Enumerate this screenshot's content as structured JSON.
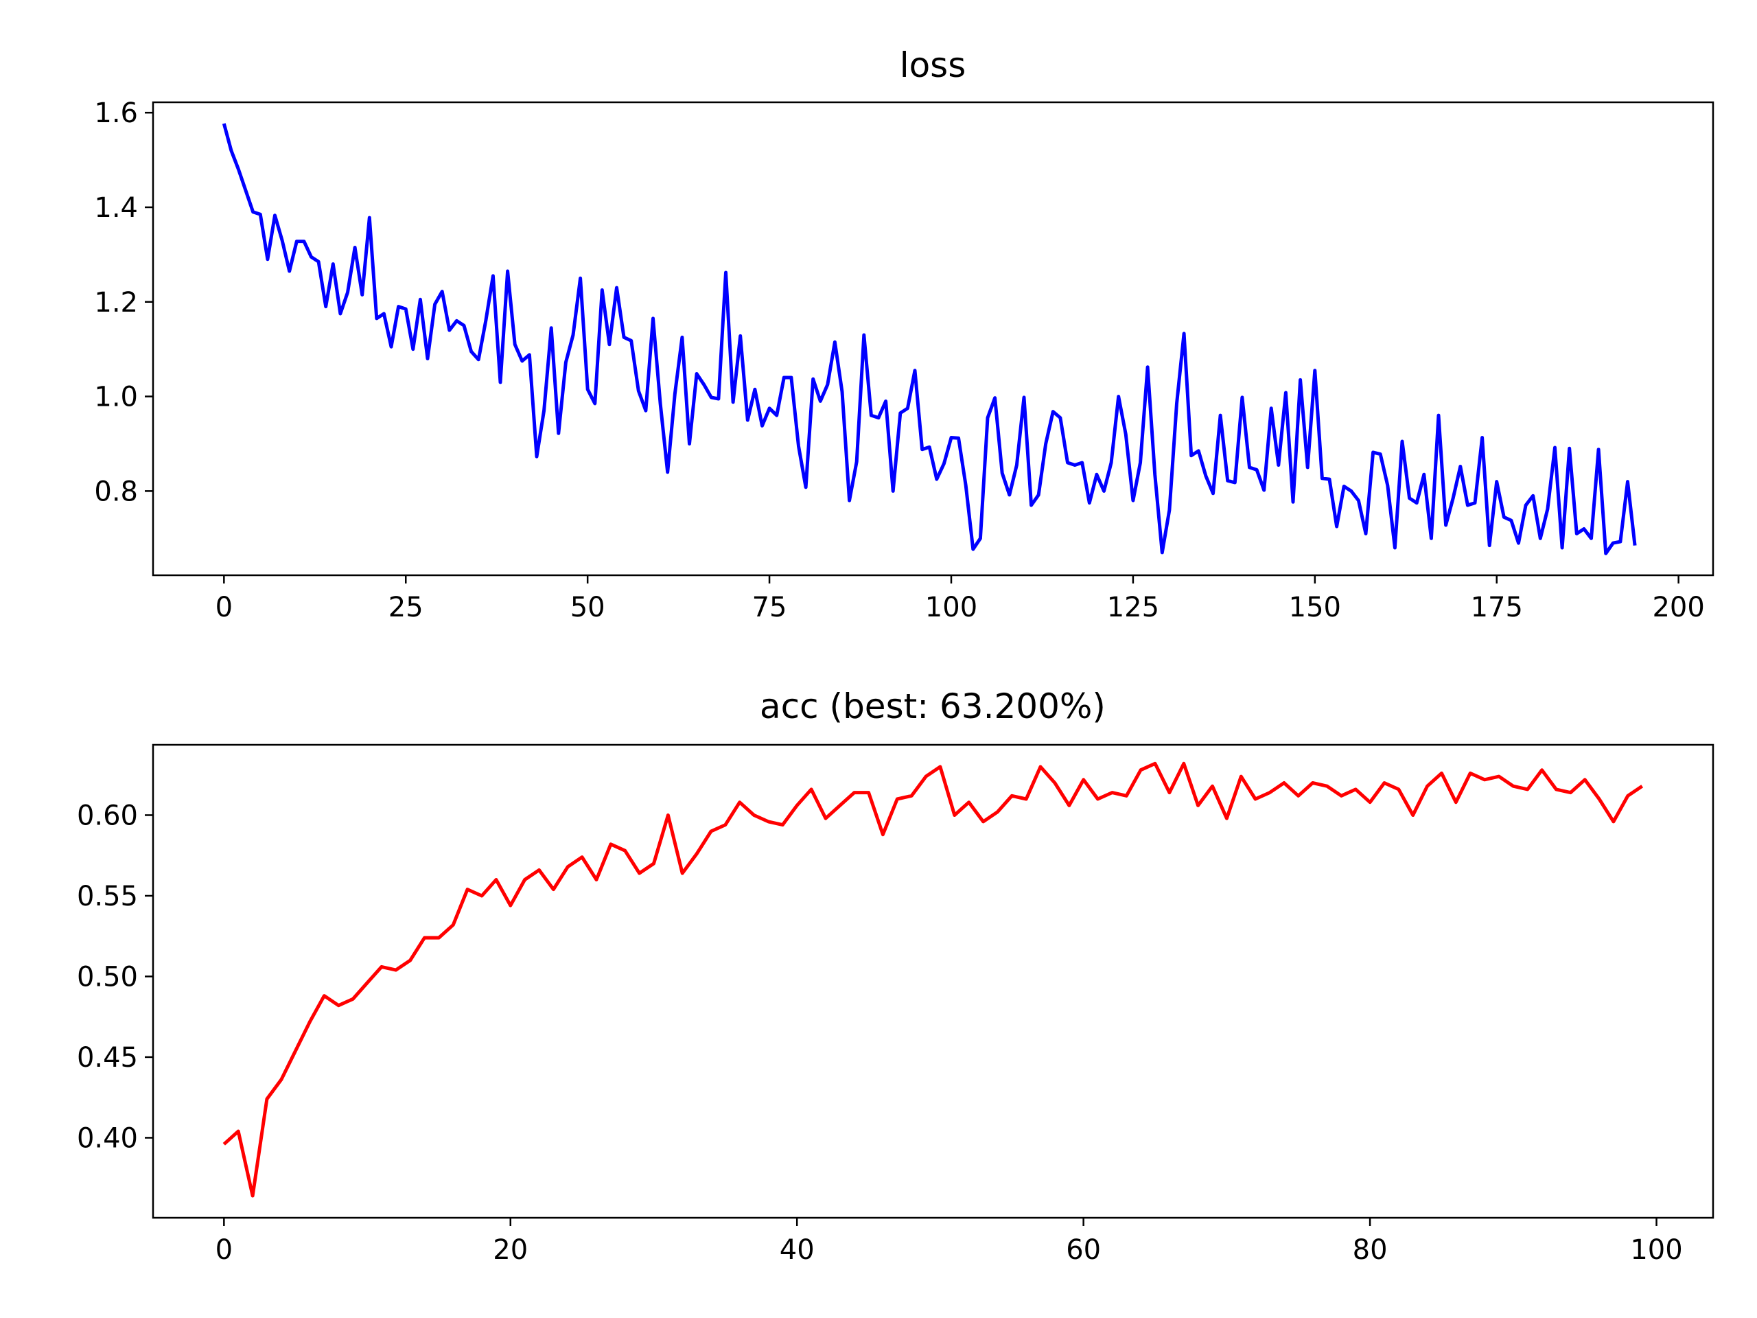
{
  "chart_data": [
    {
      "type": "line",
      "title": "loss",
      "xlabel": "",
      "ylabel": "",
      "xlim": [
        -9.75,
        204.75
      ],
      "ylim": [
        0.622,
        1.622
      ],
      "xticks": [
        0,
        25,
        50,
        75,
        100,
        125,
        150,
        175,
        200
      ],
      "yticks": [
        0.8,
        1.0,
        1.2,
        1.4,
        1.6
      ],
      "grid": false,
      "legend": "none",
      "series": [
        {
          "color": "#0000ff",
          "x_start": 0,
          "x_step": 1,
          "values": [
            1.577,
            1.52,
            1.48,
            1.435,
            1.39,
            1.385,
            1.29,
            1.383,
            1.33,
            1.265,
            1.328,
            1.328,
            1.295,
            1.285,
            1.19,
            1.28,
            1.175,
            1.22,
            1.315,
            1.215,
            1.378,
            1.165,
            1.175,
            1.105,
            1.19,
            1.185,
            1.1,
            1.205,
            1.08,
            1.195,
            1.222,
            1.14,
            1.16,
            1.15,
            1.095,
            1.078,
            1.16,
            1.255,
            1.03,
            1.265,
            1.11,
            1.075,
            1.088,
            0.873,
            0.97,
            1.145,
            0.922,
            1.072,
            1.13,
            1.25,
            1.015,
            0.985,
            1.225,
            1.11,
            1.23,
            1.125,
            1.118,
            1.012,
            0.97,
            1.165,
            0.985,
            0.84,
            1.005,
            1.125,
            0.9,
            1.048,
            1.025,
            0.998,
            0.995,
            1.262,
            0.988,
            1.128,
            0.95,
            1.015,
            0.938,
            0.975,
            0.96,
            1.04,
            1.04,
            0.895,
            0.808,
            1.037,
            0.99,
            1.025,
            1.115,
            1.01,
            0.78,
            0.862,
            1.13,
            0.96,
            0.955,
            0.99,
            0.8,
            0.965,
            0.975,
            1.055,
            0.888,
            0.893,
            0.825,
            0.858,
            0.913,
            0.912,
            0.812,
            0.677,
            0.7,
            0.955,
            0.997,
            0.838,
            0.792,
            0.855,
            0.998,
            0.77,
            0.792,
            0.9,
            0.968,
            0.955,
            0.86,
            0.855,
            0.86,
            0.775,
            0.835,
            0.8,
            0.86,
            1.0,
            0.92,
            0.78,
            0.86,
            1.062,
            0.835,
            0.67,
            0.76,
            0.985,
            1.133,
            0.875,
            0.885,
            0.832,
            0.795,
            0.96,
            0.822,
            0.818,
            0.998,
            0.85,
            0.845,
            0.802,
            0.975,
            0.855,
            1.008,
            0.777,
            1.035,
            0.85,
            1.055,
            0.827,
            0.825,
            0.725,
            0.81,
            0.8,
            0.78,
            0.71,
            0.882,
            0.878,
            0.812,
            0.68,
            0.905,
            0.785,
            0.775,
            0.835,
            0.7,
            0.96,
            0.728,
            0.785,
            0.852,
            0.77,
            0.775,
            0.913,
            0.685,
            0.82,
            0.745,
            0.738,
            0.69,
            0.77,
            0.79,
            0.7,
            0.762,
            0.892,
            0.68,
            0.89,
            0.71,
            0.72,
            0.7,
            0.888,
            0.668,
            0.69,
            0.693,
            0.82,
            0.685
          ]
        }
      ]
    },
    {
      "type": "line",
      "title": "acc (best: 63.200%)",
      "xlabel": "",
      "ylabel": "",
      "xlim": [
        -4.95,
        103.95
      ],
      "ylim": [
        0.3504,
        0.6436
      ],
      "xticks": [
        0,
        20,
        40,
        60,
        80,
        100
      ],
      "yticks": [
        0.4,
        0.45,
        0.5,
        0.55,
        0.6
      ],
      "ytick_decimals": 2,
      "grid": false,
      "legend": "none",
      "series": [
        {
          "color": "#ff0000",
          "x_start": 0,
          "x_step": 1,
          "values": [
            0.396,
            0.404,
            0.364,
            0.424,
            0.436,
            0.454,
            0.472,
            0.488,
            0.482,
            0.486,
            0.496,
            0.506,
            0.504,
            0.51,
            0.524,
            0.524,
            0.532,
            0.554,
            0.55,
            0.56,
            0.544,
            0.56,
            0.566,
            0.554,
            0.568,
            0.574,
            0.56,
            0.582,
            0.578,
            0.564,
            0.57,
            0.6,
            0.564,
            0.576,
            0.59,
            0.594,
            0.608,
            0.6,
            0.596,
            0.594,
            0.606,
            0.616,
            0.598,
            0.606,
            0.614,
            0.614,
            0.588,
            0.61,
            0.612,
            0.624,
            0.63,
            0.6,
            0.608,
            0.596,
            0.602,
            0.612,
            0.61,
            0.63,
            0.62,
            0.606,
            0.622,
            0.61,
            0.614,
            0.612,
            0.628,
            0.632,
            0.614,
            0.632,
            0.606,
            0.618,
            0.598,
            0.624,
            0.61,
            0.614,
            0.62,
            0.612,
            0.62,
            0.618,
            0.612,
            0.616,
            0.608,
            0.62,
            0.616,
            0.6,
            0.618,
            0.626,
            0.608,
            0.626,
            0.622,
            0.624,
            0.618,
            0.616,
            0.628,
            0.616,
            0.614,
            0.622,
            0.61,
            0.596,
            0.612,
            0.618
          ]
        }
      ]
    }
  ]
}
